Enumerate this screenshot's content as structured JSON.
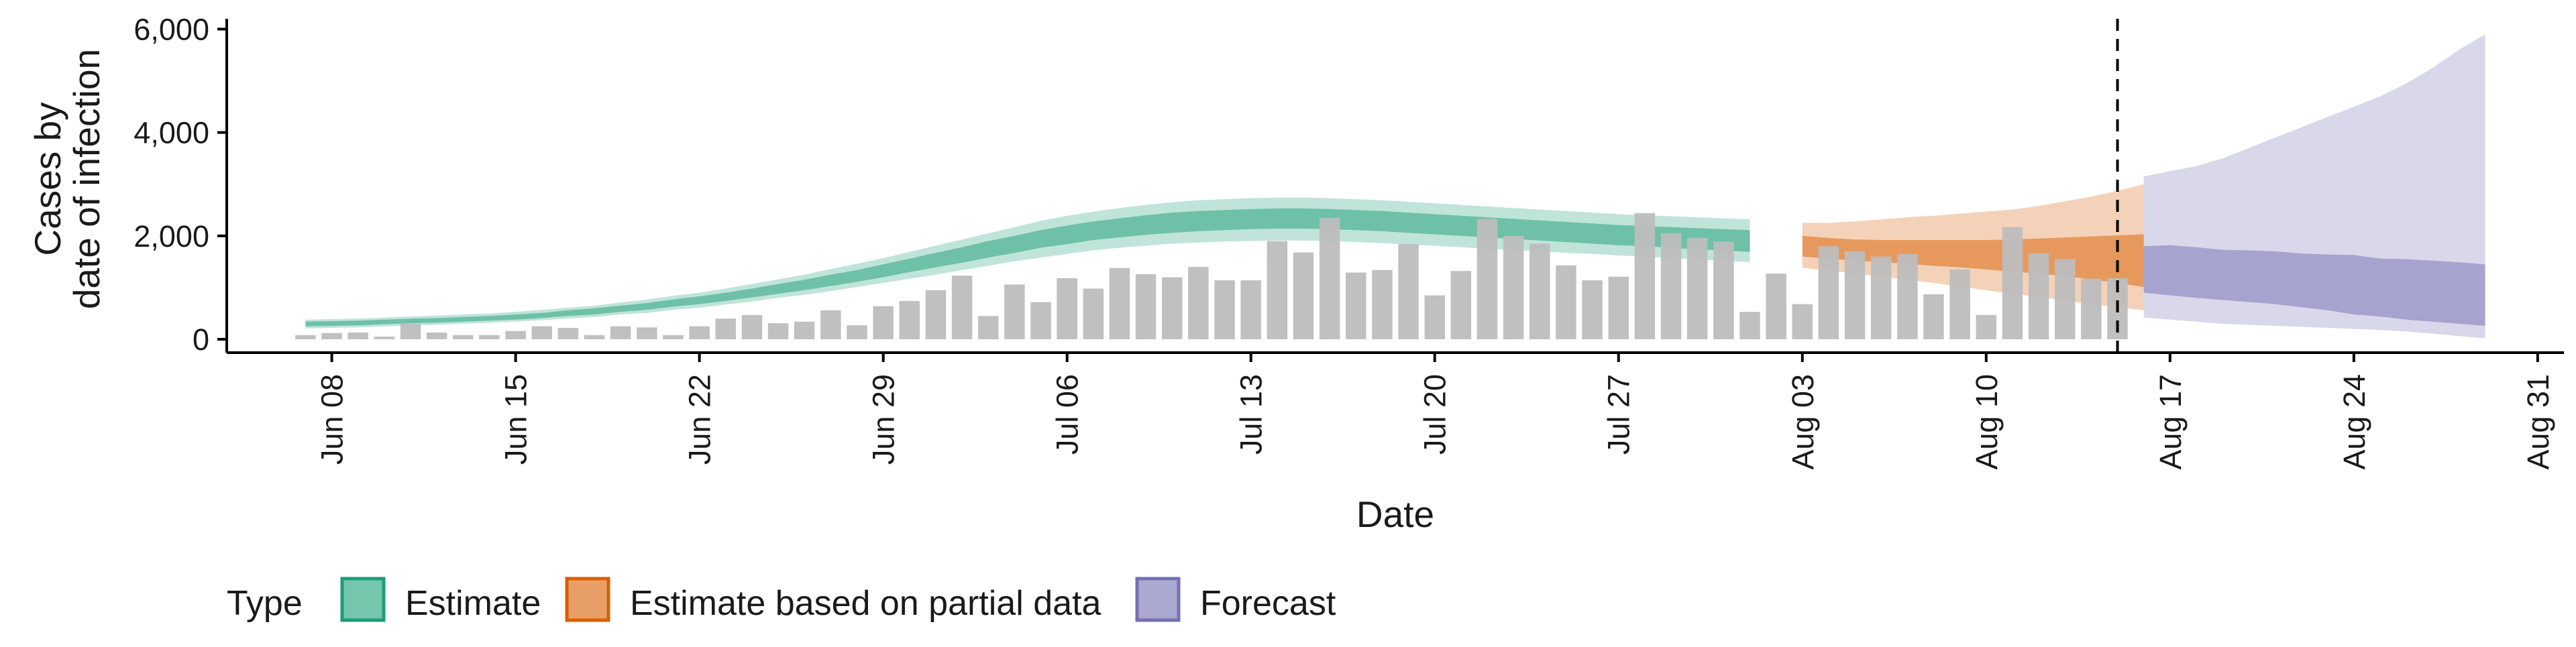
{
  "chart_data": {
    "type": "bar",
    "xlabel": "Date",
    "ylabel_lines": [
      "Cases by",
      "date of infection"
    ],
    "ylim": [
      0,
      6200
    ],
    "xlim": [
      "2020-06-04",
      "2020-09-01"
    ],
    "y_ticks": [
      0,
      2000,
      4000,
      6000
    ],
    "y_tick_labels": [
      "0",
      "2,000",
      "4,000",
      "6,000"
    ],
    "x_ticks": [
      "2020-06-08",
      "2020-06-15",
      "2020-06-22",
      "2020-06-29",
      "2020-07-06",
      "2020-07-13",
      "2020-07-20",
      "2020-07-27",
      "2020-08-03",
      "2020-08-10",
      "2020-08-17",
      "2020-08-24",
      "2020-08-31"
    ],
    "x_tick_labels": [
      "Jun 08",
      "Jun 15",
      "Jun 22",
      "Jun 29",
      "Jul 06",
      "Jul 13",
      "Jul 20",
      "Jul 27",
      "Aug 03",
      "Aug 10",
      "Aug 17",
      "Aug 24",
      "Aug 31"
    ],
    "grid": false,
    "vline_date": "2020-08-15",
    "bar_color": "#bdbdbd",
    "bars": {
      "start": "2020-06-07",
      "values": [
        80,
        120,
        130,
        50,
        300,
        130,
        80,
        80,
        160,
        250,
        220,
        80,
        250,
        230,
        80,
        250,
        400,
        470,
        310,
        340,
        560,
        270,
        640,
        740,
        950,
        1230,
        450,
        1060,
        720,
        1180,
        980,
        1380,
        1260,
        1200,
        1400,
        1140,
        1140,
        1900,
        1680,
        2350,
        1290,
        1340,
        1840,
        850,
        1320,
        2330,
        2000,
        1850,
        1430,
        1140,
        1210,
        2440,
        2050,
        1960,
        1890,
        530,
        1270,
        680,
        1800,
        1700,
        1600,
        1650,
        870,
        1350,
        470,
        2170,
        1660,
        1550,
        1170,
        1180
      ]
    },
    "series": [
      {
        "name": "Estimate",
        "color": "#1b9e77",
        "start": "2020-06-07",
        "median": [
          290,
          300,
          310,
          330,
          350,
          360,
          380,
          400,
          430,
          460,
          500,
          540,
          590,
          640,
          700,
          760,
          830,
          900,
          980,
          1060,
          1150,
          1240,
          1340,
          1440,
          1550,
          1650,
          1760,
          1860,
          1960,
          2040,
          2120,
          2180,
          2230,
          2270,
          2300,
          2320,
          2340,
          2350,
          2350,
          2340,
          2320,
          2300,
          2270,
          2240,
          2200,
          2170,
          2140,
          2110,
          2080,
          2050,
          2020,
          2000,
          1980,
          1960,
          1940,
          1920
        ],
        "inner": [
          [
            250,
            340
          ],
          [
            260,
            350
          ],
          [
            270,
            360
          ],
          [
            290,
            380
          ],
          [
            310,
            400
          ],
          [
            320,
            410
          ],
          [
            340,
            430
          ],
          [
            360,
            450
          ],
          [
            380,
            480
          ],
          [
            410,
            510
          ],
          [
            450,
            560
          ],
          [
            480,
            600
          ],
          [
            530,
            650
          ],
          [
            570,
            700
          ],
          [
            630,
            770
          ],
          [
            680,
            830
          ],
          [
            740,
            900
          ],
          [
            810,
            980
          ],
          [
            880,
            1070
          ],
          [
            950,
            1150
          ],
          [
            1030,
            1250
          ],
          [
            1110,
            1340
          ],
          [
            1200,
            1450
          ],
          [
            1300,
            1560
          ],
          [
            1390,
            1670
          ],
          [
            1480,
            1780
          ],
          [
            1580,
            1900
          ],
          [
            1670,
            2000
          ],
          [
            1770,
            2110
          ],
          [
            1840,
            2200
          ],
          [
            1920,
            2280
          ],
          [
            1970,
            2340
          ],
          [
            2020,
            2400
          ],
          [
            2060,
            2450
          ],
          [
            2090,
            2480
          ],
          [
            2110,
            2500
          ],
          [
            2130,
            2520
          ],
          [
            2140,
            2530
          ],
          [
            2140,
            2530
          ],
          [
            2130,
            2520
          ],
          [
            2110,
            2500
          ],
          [
            2090,
            2480
          ],
          [
            2060,
            2450
          ],
          [
            2030,
            2420
          ],
          [
            2000,
            2390
          ],
          [
            1970,
            2360
          ],
          [
            1940,
            2330
          ],
          [
            1910,
            2300
          ],
          [
            1880,
            2270
          ],
          [
            1850,
            2240
          ],
          [
            1820,
            2210
          ],
          [
            1800,
            2190
          ],
          [
            1770,
            2170
          ],
          [
            1740,
            2150
          ],
          [
            1720,
            2130
          ],
          [
            1690,
            2110
          ]
        ],
        "outer": [
          [
            210,
            380
          ],
          [
            220,
            390
          ],
          [
            230,
            400
          ],
          [
            250,
            420
          ],
          [
            270,
            440
          ],
          [
            280,
            460
          ],
          [
            300,
            480
          ],
          [
            320,
            500
          ],
          [
            340,
            530
          ],
          [
            370,
            570
          ],
          [
            400,
            610
          ],
          [
            430,
            650
          ],
          [
            480,
            710
          ],
          [
            510,
            770
          ],
          [
            570,
            840
          ],
          [
            610,
            900
          ],
          [
            670,
            980
          ],
          [
            730,
            1070
          ],
          [
            800,
            1160
          ],
          [
            860,
            1250
          ],
          [
            930,
            1360
          ],
          [
            1010,
            1460
          ],
          [
            1090,
            1570
          ],
          [
            1170,
            1690
          ],
          [
            1250,
            1810
          ],
          [
            1340,
            1930
          ],
          [
            1420,
            2050
          ],
          [
            1510,
            2170
          ],
          [
            1580,
            2290
          ],
          [
            1650,
            2390
          ],
          [
            1720,
            2470
          ],
          [
            1770,
            2540
          ],
          [
            1810,
            2600
          ],
          [
            1850,
            2650
          ],
          [
            1870,
            2690
          ],
          [
            1890,
            2710
          ],
          [
            1900,
            2730
          ],
          [
            1910,
            2740
          ],
          [
            1910,
            2740
          ],
          [
            1900,
            2730
          ],
          [
            1880,
            2710
          ],
          [
            1860,
            2690
          ],
          [
            1830,
            2660
          ],
          [
            1810,
            2630
          ],
          [
            1780,
            2600
          ],
          [
            1750,
            2570
          ],
          [
            1730,
            2540
          ],
          [
            1700,
            2510
          ],
          [
            1670,
            2480
          ],
          [
            1650,
            2450
          ],
          [
            1620,
            2420
          ],
          [
            1600,
            2400
          ],
          [
            1570,
            2380
          ],
          [
            1540,
            2360
          ],
          [
            1520,
            2340
          ],
          [
            1490,
            2320
          ]
        ]
      },
      {
        "name": "Estimate based on partial data",
        "color": "#d95f02",
        "start": "2020-08-03",
        "median": [
          1800,
          1760,
          1730,
          1700,
          1680,
          1660,
          1650,
          1640,
          1630,
          1620,
          1600,
          1580,
          1550,
          1510
        ],
        "inner": [
          [
            1600,
            2000
          ],
          [
            1560,
            1960
          ],
          [
            1520,
            1930
          ],
          [
            1490,
            1920
          ],
          [
            1460,
            1920
          ],
          [
            1420,
            1920
          ],
          [
            1390,
            1920
          ],
          [
            1350,
            1920
          ],
          [
            1310,
            1930
          ],
          [
            1270,
            1950
          ],
          [
            1220,
            1970
          ],
          [
            1160,
            1990
          ],
          [
            1090,
            2010
          ],
          [
            1010,
            2030
          ]
        ],
        "outer": [
          [
            1380,
            2250
          ],
          [
            1330,
            2250
          ],
          [
            1270,
            2280
          ],
          [
            1210,
            2320
          ],
          [
            1150,
            2360
          ],
          [
            1090,
            2390
          ],
          [
            1020,
            2430
          ],
          [
            950,
            2470
          ],
          [
            880,
            2510
          ],
          [
            820,
            2580
          ],
          [
            750,
            2670
          ],
          [
            680,
            2760
          ],
          [
            620,
            2870
          ],
          [
            560,
            3000
          ]
        ]
      },
      {
        "name": "Forecast",
        "color": "#7570b3",
        "start": "2020-08-16",
        "median": [
          1350,
          1330,
          1300,
          1250,
          1200,
          1170,
          1140,
          1100,
          1060,
          1020,
          980,
          950,
          920,
          900
        ],
        "inner": [
          [
            900,
            1800
          ],
          [
            850,
            1820
          ],
          [
            800,
            1780
          ],
          [
            760,
            1730
          ],
          [
            720,
            1720
          ],
          [
            680,
            1700
          ],
          [
            620,
            1660
          ],
          [
            560,
            1640
          ],
          [
            480,
            1630
          ],
          [
            440,
            1560
          ],
          [
            380,
            1550
          ],
          [
            340,
            1520
          ],
          [
            300,
            1490
          ],
          [
            260,
            1450
          ]
        ],
        "outer": [
          [
            420,
            3150
          ],
          [
            380,
            3250
          ],
          [
            340,
            3350
          ],
          [
            300,
            3500
          ],
          [
            280,
            3700
          ],
          [
            260,
            3900
          ],
          [
            240,
            4100
          ],
          [
            220,
            4300
          ],
          [
            200,
            4500
          ],
          [
            180,
            4700
          ],
          [
            150,
            4950
          ],
          [
            110,
            5250
          ],
          [
            60,
            5600
          ],
          [
            20,
            5900
          ]
        ]
      }
    ],
    "legend": {
      "title": "Type",
      "position": "bottom",
      "items": [
        {
          "label": "Estimate",
          "color": "#1b9e77"
        },
        {
          "label": "Estimate based on partial data",
          "color": "#d95f02"
        },
        {
          "label": "Forecast",
          "color": "#7570b3"
        }
      ]
    }
  }
}
